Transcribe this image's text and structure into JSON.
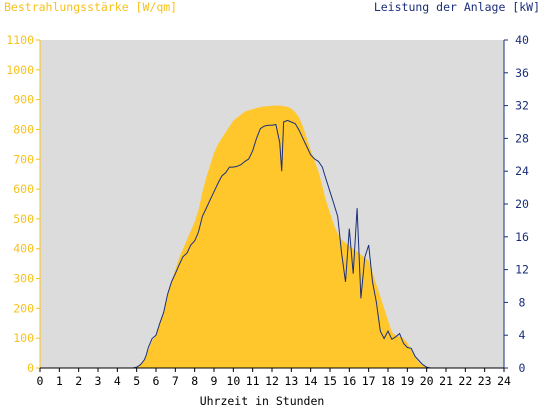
{
  "colors": {
    "left_axis": "#f7c21e",
    "right_axis": "#1a2f7a",
    "irradiance_fill": "#ffc72c",
    "power_line": "#1a2f7a",
    "plot_bg": "#dcdcdc",
    "x_axis_text": "#000000"
  },
  "chart_data": {
    "type": "area",
    "title": "",
    "left_axis_label": "Bestrahlungsstärke [W/qm]",
    "right_axis_label": "Leistung der Anlage [kW]",
    "xlabel": "Uhrzeit in Stunden",
    "xlim": [
      0,
      24
    ],
    "ylim_left": [
      0,
      1100
    ],
    "ylim_right": [
      0,
      40
    ],
    "x_ticks": [
      "0",
      "1",
      "2",
      "3",
      "4",
      "5",
      "6",
      "7",
      "8",
      "9",
      "10",
      "11",
      "12",
      "13",
      "14",
      "15",
      "16",
      "17",
      "18",
      "19",
      "20",
      "21",
      "22",
      "23",
      "24"
    ],
    "y_left_ticks": [
      "0",
      "100",
      "200",
      "300",
      "400",
      "500",
      "600",
      "700",
      "800",
      "900",
      "1000",
      "1100"
    ],
    "y_right_ticks": [
      "0",
      "4",
      "8",
      "12",
      "16",
      "20",
      "24",
      "28",
      "32",
      "36",
      "40"
    ],
    "grid": false,
    "series": [
      {
        "name": "Bestrahlungsstärke [W/qm]",
        "axis": "left",
        "kind": "area",
        "x": [
          0,
          4.8,
          5.0,
          5.2,
          5.4,
          5.5,
          5.6,
          5.8,
          6.0,
          6.2,
          6.4,
          6.6,
          6.8,
          7.0,
          7.2,
          7.4,
          7.6,
          7.8,
          8.0,
          8.2,
          8.4,
          8.6,
          8.8,
          9.0,
          9.2,
          9.4,
          9.6,
          9.8,
          10.0,
          10.2,
          10.4,
          10.6,
          10.8,
          11.0,
          11.2,
          11.4,
          11.6,
          11.8,
          12.0,
          12.2,
          12.4,
          12.5,
          12.6,
          12.8,
          13.0,
          13.2,
          13.4,
          13.6,
          13.8,
          14.0,
          14.2,
          14.4,
          14.6,
          14.8,
          15.0,
          15.2,
          15.4,
          15.6,
          15.8,
          16.0,
          16.2,
          16.4,
          16.6,
          16.8,
          17.0,
          17.2,
          17.4,
          17.6,
          17.8,
          18.0,
          18.2,
          18.4,
          18.6,
          18.8,
          19.0,
          19.2,
          19.4,
          19.6,
          19.8,
          20.0,
          20.2,
          24
        ],
        "values": [
          0,
          0,
          2,
          10,
          25,
          40,
          60,
          90,
          110,
          150,
          190,
          240,
          290,
          330,
          370,
          400,
          430,
          460,
          490,
          530,
          590,
          640,
          680,
          720,
          750,
          770,
          790,
          810,
          830,
          840,
          850,
          860,
          865,
          868,
          872,
          875,
          878,
          878,
          880,
          880,
          880,
          880,
          878,
          876,
          870,
          858,
          840,
          810,
          770,
          730,
          695,
          660,
          610,
          560,
          520,
          480,
          450,
          430,
          420,
          410,
          400,
          390,
          380,
          370,
          360,
          320,
          280,
          240,
          200,
          160,
          120,
          110,
          105,
          100,
          85,
          60,
          35,
          18,
          8,
          3,
          0,
          0
        ],
        "description": "Global irradiance over the day"
      },
      {
        "name": "Leistung der Anlage [kW]",
        "axis": "right",
        "kind": "line",
        "x": [
          0,
          4.8,
          5.0,
          5.2,
          5.4,
          5.5,
          5.6,
          5.8,
          6.0,
          6.2,
          6.4,
          6.6,
          6.8,
          7.0,
          7.2,
          7.4,
          7.6,
          7.8,
          8.0,
          8.2,
          8.4,
          8.6,
          8.8,
          9.0,
          9.2,
          9.4,
          9.6,
          9.8,
          10.0,
          10.2,
          10.4,
          10.6,
          10.8,
          11.0,
          11.2,
          11.4,
          11.6,
          11.8,
          12.0,
          12.2,
          12.4,
          12.5,
          12.6,
          12.8,
          13.0,
          13.2,
          13.4,
          13.6,
          13.8,
          14.0,
          14.2,
          14.4,
          14.6,
          14.8,
          15.0,
          15.2,
          15.4,
          15.6,
          15.8,
          16.0,
          16.2,
          16.4,
          16.6,
          16.8,
          17.0,
          17.2,
          17.4,
          17.6,
          17.8,
          18.0,
          18.2,
          18.4,
          18.6,
          18.8,
          19.0,
          19.2,
          19.4,
          19.6,
          19.8,
          20.0,
          20.2,
          24
        ],
        "values": [
          0,
          0,
          0.1,
          0.4,
          1.0,
          1.6,
          2.5,
          3.6,
          4.0,
          5.5,
          6.8,
          9.0,
          10.5,
          11.5,
          12.6,
          13.6,
          14.0,
          15.0,
          15.5,
          16.6,
          18.5,
          19.5,
          20.5,
          21.5,
          22.5,
          23.4,
          23.8,
          24.5,
          24.5,
          24.6,
          24.8,
          25.2,
          25.5,
          26.5,
          28.0,
          29.2,
          29.5,
          29.6,
          29.6,
          29.7,
          27.5,
          24.0,
          30.0,
          30.2,
          30.0,
          29.8,
          29.0,
          28.0,
          27.0,
          26.0,
          25.5,
          25.2,
          24.5,
          23.0,
          21.5,
          20.0,
          18.5,
          14.0,
          10.5,
          17.0,
          11.5,
          19.5,
          8.5,
          13.5,
          15.0,
          10.5,
          8.0,
          4.5,
          3.6,
          4.5,
          3.5,
          3.8,
          4.2,
          3.0,
          2.5,
          2.4,
          1.4,
          0.9,
          0.4,
          0.1,
          0,
          0
        ],
        "description": "PV plant output over the day"
      }
    ]
  }
}
